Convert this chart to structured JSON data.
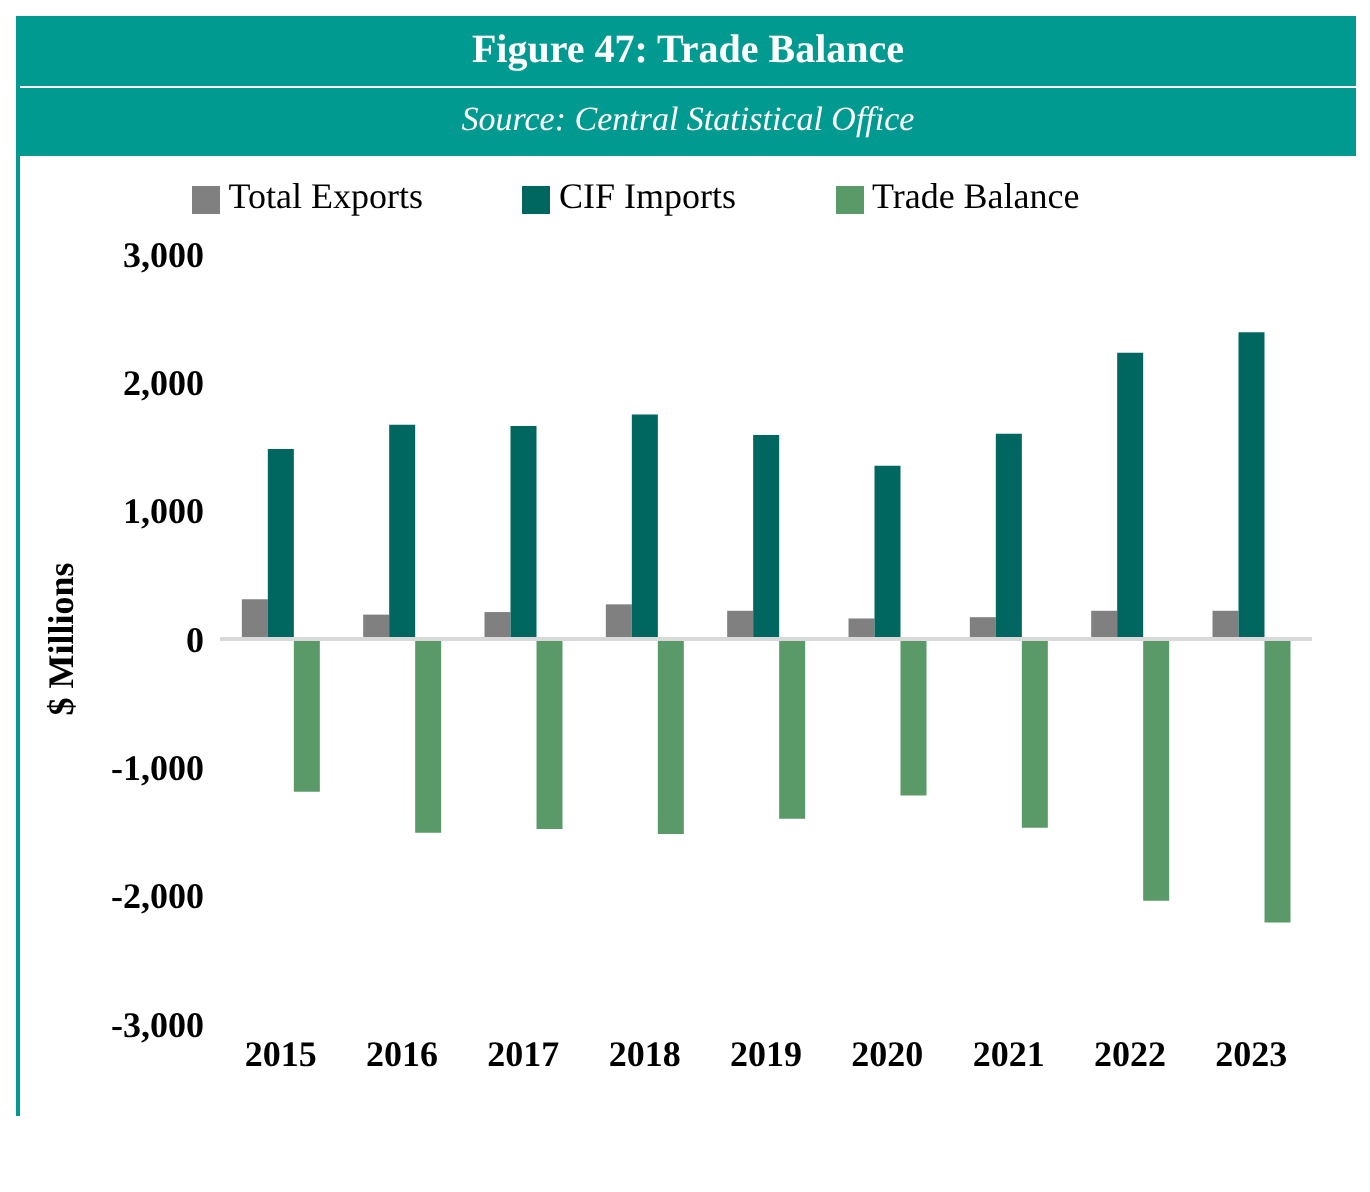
{
  "chart_data": {
    "type": "bar",
    "title": "Figure 47: Trade Balance",
    "subtitle": "Source: Central Statistical Office",
    "ylabel": "$ Millions",
    "categories": [
      "2015",
      "2016",
      "2017",
      "2018",
      "2019",
      "2020",
      "2021",
      "2022",
      "2023"
    ],
    "series": [
      {
        "name": "Total Exports",
        "color": "#808080",
        "values": [
          310,
          190,
          210,
          270,
          220,
          160,
          170,
          220,
          220
        ]
      },
      {
        "name": "CIF Imports",
        "color": "#006660",
        "values": [
          1480,
          1670,
          1660,
          1750,
          1590,
          1350,
          1600,
          2230,
          2390
        ]
      },
      {
        "name": "Trade Balance",
        "color": "#5a9a68",
        "values": [
          -1190,
          -1510,
          -1480,
          -1520,
          -1400,
          -1220,
          -1470,
          -2040,
          -2210
        ]
      }
    ],
    "ylim": [
      -3000,
      3000
    ],
    "yticks": [
      {
        "value": -3000,
        "label": "-3,000"
      },
      {
        "value": -2000,
        "label": "-2,000"
      },
      {
        "value": -1000,
        "label": "-1,000"
      },
      0,
      {
        "value": 1000,
        "label": "1,000"
      },
      {
        "value": 2000,
        "label": "2,000"
      },
      {
        "value": 3000,
        "label": "3,000"
      }
    ],
    "legend": "top"
  }
}
